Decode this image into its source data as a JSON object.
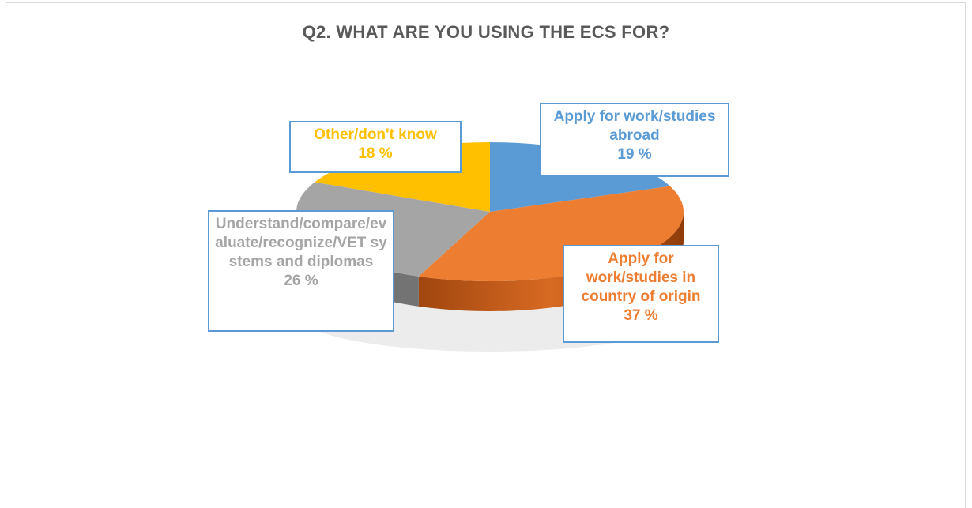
{
  "chart_data": {
    "type": "pie",
    "title": "Q2. WHAT ARE YOU USING THE ECS FOR?",
    "slices": [
      {
        "label": "Apply for work/studies abroad",
        "value": 19,
        "value_label": "19 %",
        "color": "#5b9bd5"
      },
      {
        "label": "Apply for work/studies in country of origin",
        "value": 37,
        "value_label": "37 %",
        "color": "#ed7d31"
      },
      {
        "label": "Understand/compare/evaluate/recognize/VET systems and diplomas",
        "value": 26,
        "value_label": "26 %",
        "color": "#a5a5a5"
      },
      {
        "label": "Other/don't know",
        "value": 18,
        "value_label": "18 %",
        "color": "#ffc000"
      }
    ],
    "label_border_color": "#5b9bd5",
    "style": "3d"
  }
}
